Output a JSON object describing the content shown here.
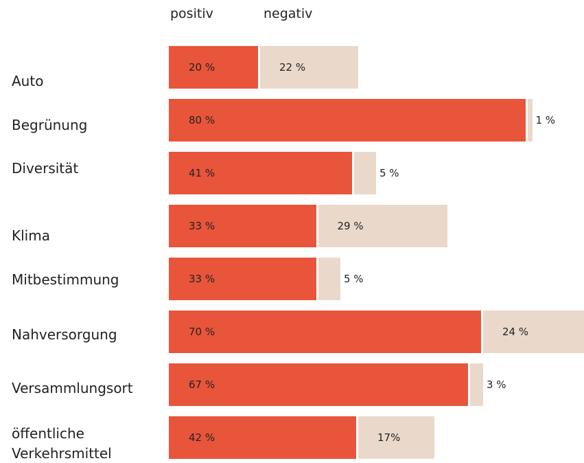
{
  "chart_data": {
    "type": "bar",
    "orientation": "horizontal",
    "stacked": true,
    "categories": [
      "Auto",
      "Begrünung",
      "Diversität",
      "Klima",
      "Mitbestimmung",
      "Nahversorgung",
      "Versammlungsort",
      "öffentliche Verkehrsmittel"
    ],
    "series": [
      {
        "name": "positiv",
        "color": "#e8553a",
        "values": [
          20,
          80,
          41,
          33,
          33,
          70,
          67,
          42
        ],
        "value_labels": [
          "20 %",
          "80 %",
          "41 %",
          "33 %",
          "33 %",
          "70 %",
          "67 %",
          "42 %"
        ]
      },
      {
        "name": "negativ",
        "color": "#ead9cb",
        "values": [
          22,
          1,
          5,
          29,
          5,
          24,
          3,
          17
        ],
        "value_labels": [
          "22 %",
          "1 %",
          "5 %",
          "29 %",
          "5 %",
          "24 %",
          "3 %",
          "17%"
        ]
      }
    ]
  }
}
